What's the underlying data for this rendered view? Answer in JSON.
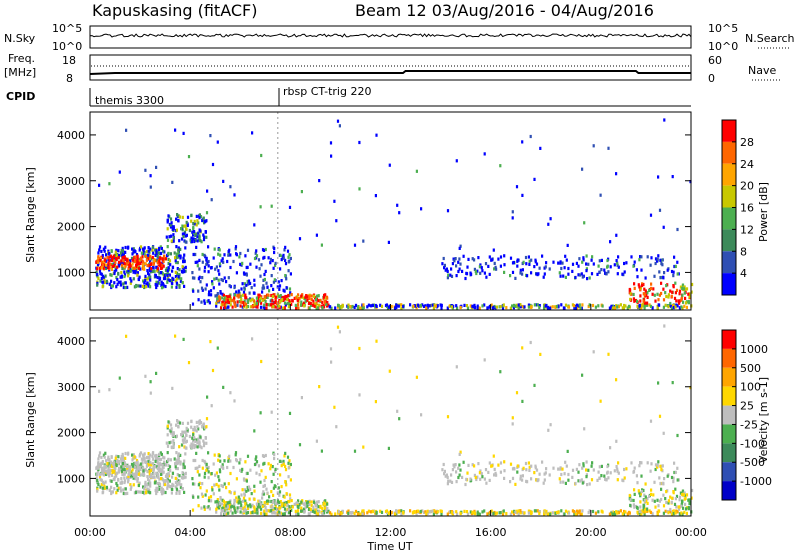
{
  "header": {
    "station": "Kapuskasing (fitACF)",
    "beam_date": "Beam 12  03/Aug/2016 - 04/Aug/2016"
  },
  "strip": {
    "nsky_label": "N.Sky",
    "nsky_top": "10^5",
    "nsky_bottom": "10^0",
    "nsearch_label": "N.Search",
    "nsearch_top": "10^5",
    "nsearch_bottom": "10^0",
    "freq_label": "Freq.",
    "freq_unit": "[MHz]",
    "freq_top": "18",
    "freq_bottom": "8",
    "nave_label": "Nave",
    "nave_top": "60",
    "nave_bottom": "0",
    "cpid_label": "CPID",
    "cpid_1": "themis 3300",
    "cpid_2": "rbsp CT-trig 220"
  },
  "chart_data": [
    {
      "type": "heatmap",
      "name": "power",
      "ylabel": "Slant Range [km]",
      "xlabel": "Time UT",
      "x_ticks": [
        "00:00",
        "04:00",
        "08:00",
        "12:00",
        "16:00",
        "20:00",
        "00:00"
      ],
      "xlim_hours": [
        0,
        24
      ],
      "ylim": [
        180,
        4500
      ],
      "y_ticks": [
        "1000",
        "2000",
        "3000",
        "4000"
      ],
      "colorbar_label": "Power [dB]",
      "colorbar_ticks": [
        "4",
        "8",
        "12",
        "16",
        "20",
        "24",
        "28"
      ],
      "colors": [
        "#0000ff",
        "#2f4fb3",
        "#3c8a5a",
        "#4caf50",
        "#c8c800",
        "#ffa500",
        "#ff6600",
        "#ff0000"
      ]
    },
    {
      "type": "heatmap",
      "name": "velocity",
      "ylabel": "Slant Range [km]",
      "xlabel": "Time UT",
      "x_ticks": [
        "00:00",
        "04:00",
        "08:00",
        "12:00",
        "16:00",
        "20:00",
        "00:00"
      ],
      "xlim_hours": [
        0,
        24
      ],
      "ylim": [
        180,
        4500
      ],
      "y_ticks": [
        "1000",
        "2000",
        "3000",
        "4000"
      ],
      "colorbar_label": "Velocity [m s-1]",
      "colorbar_ticks": [
        "1000",
        "500",
        "100",
        "25",
        "-25",
        "-100",
        "-500",
        "-1000"
      ],
      "colors": [
        "#0000c8",
        "#2f4fb3",
        "#3c8a5a",
        "#4caf50",
        "#bebebe",
        "#ffd700",
        "#ffa500",
        "#ff6600",
        "#ff0000"
      ]
    }
  ],
  "x_axis_title": "Time UT"
}
